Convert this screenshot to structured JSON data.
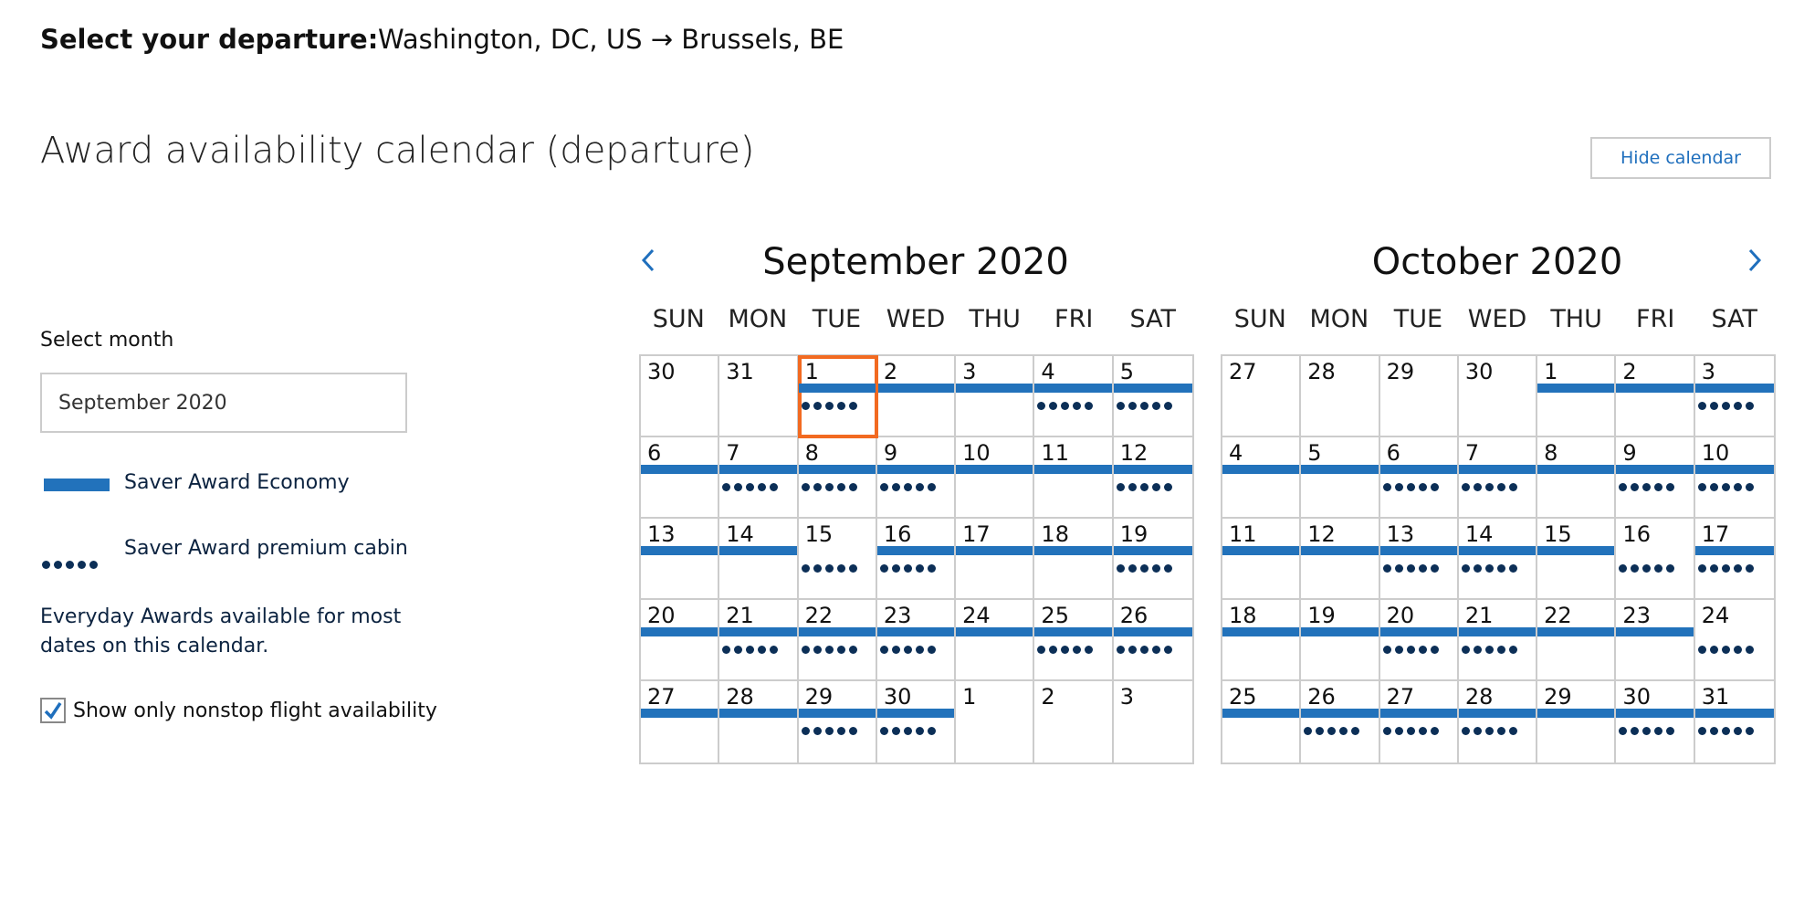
{
  "header": {
    "label": "Select your departure:",
    "route": "Washington, DC, US → Brussels, BE"
  },
  "title": "Award availability calendar (departure)",
  "hide_button": "Hide calendar",
  "sidebar": {
    "select_label": "Select month",
    "select_value": "September 2020",
    "legend": {
      "economy": "Saver Award Economy",
      "premium": "Saver Award premium cabin"
    },
    "everyday_note": "Everyday Awards available for most dates on this calendar.",
    "nonstop_label": "Show only nonstop flight availability",
    "nonstop_checked": true
  },
  "colors": {
    "economy": "#2272bb",
    "premium": "#0c2f57",
    "selected": "#f26a21",
    "accent": "#1f6fbd"
  },
  "weekdays": [
    "SUN",
    "MON",
    "TUE",
    "WED",
    "THU",
    "FRI",
    "SAT"
  ],
  "legend_key": {
    "E": "Saver Award Economy",
    "P": "Saver Award premium cabin"
  },
  "months": [
    {
      "title": "September 2020",
      "selected_day": "1",
      "cells": [
        [
          "30",
          ""
        ],
        [
          "31",
          ""
        ],
        [
          "1",
          "EP"
        ],
        [
          "2",
          "E"
        ],
        [
          "3",
          "E"
        ],
        [
          "4",
          "EP"
        ],
        [
          "5",
          "EP"
        ],
        [
          "6",
          "E"
        ],
        [
          "7",
          "EP"
        ],
        [
          "8",
          "EP"
        ],
        [
          "9",
          "EP"
        ],
        [
          "10",
          "E"
        ],
        [
          "11",
          "E"
        ],
        [
          "12",
          "EP"
        ],
        [
          "13",
          "E"
        ],
        [
          "14",
          "E"
        ],
        [
          "15",
          "P"
        ],
        [
          "16",
          "EP"
        ],
        [
          "17",
          "E"
        ],
        [
          "18",
          "E"
        ],
        [
          "19",
          "EP"
        ],
        [
          "20",
          "E"
        ],
        [
          "21",
          "EP"
        ],
        [
          "22",
          "EP"
        ],
        [
          "23",
          "EP"
        ],
        [
          "24",
          "E"
        ],
        [
          "25",
          "EP"
        ],
        [
          "26",
          "EP"
        ],
        [
          "27",
          "E"
        ],
        [
          "28",
          "E"
        ],
        [
          "29",
          "EP"
        ],
        [
          "30",
          "EP"
        ],
        [
          "1",
          ""
        ],
        [
          "2",
          ""
        ],
        [
          "3",
          ""
        ]
      ]
    },
    {
      "title": "October 2020",
      "cells": [
        [
          "27",
          ""
        ],
        [
          "28",
          ""
        ],
        [
          "29",
          ""
        ],
        [
          "30",
          ""
        ],
        [
          "1",
          "E"
        ],
        [
          "2",
          "E"
        ],
        [
          "3",
          "EP"
        ],
        [
          "4",
          "E"
        ],
        [
          "5",
          "E"
        ],
        [
          "6",
          "EP"
        ],
        [
          "7",
          "EP"
        ],
        [
          "8",
          "E"
        ],
        [
          "9",
          "EP"
        ],
        [
          "10",
          "EP"
        ],
        [
          "11",
          "E"
        ],
        [
          "12",
          "E"
        ],
        [
          "13",
          "EP"
        ],
        [
          "14",
          "EP"
        ],
        [
          "15",
          "E"
        ],
        [
          "16",
          "P"
        ],
        [
          "17",
          "EP"
        ],
        [
          "18",
          "E"
        ],
        [
          "19",
          "E"
        ],
        [
          "20",
          "EP"
        ],
        [
          "21",
          "EP"
        ],
        [
          "22",
          "E"
        ],
        [
          "23",
          "E"
        ],
        [
          "24",
          "P"
        ],
        [
          "25",
          "E"
        ],
        [
          "26",
          "EP"
        ],
        [
          "27",
          "EP"
        ],
        [
          "28",
          "EP"
        ],
        [
          "29",
          "E"
        ],
        [
          "30",
          "EP"
        ],
        [
          "31",
          "EP"
        ]
      ]
    }
  ],
  "icons": {
    "prev": "chevron-left-icon",
    "next": "chevron-right-icon",
    "check": "checkmark-icon"
  }
}
